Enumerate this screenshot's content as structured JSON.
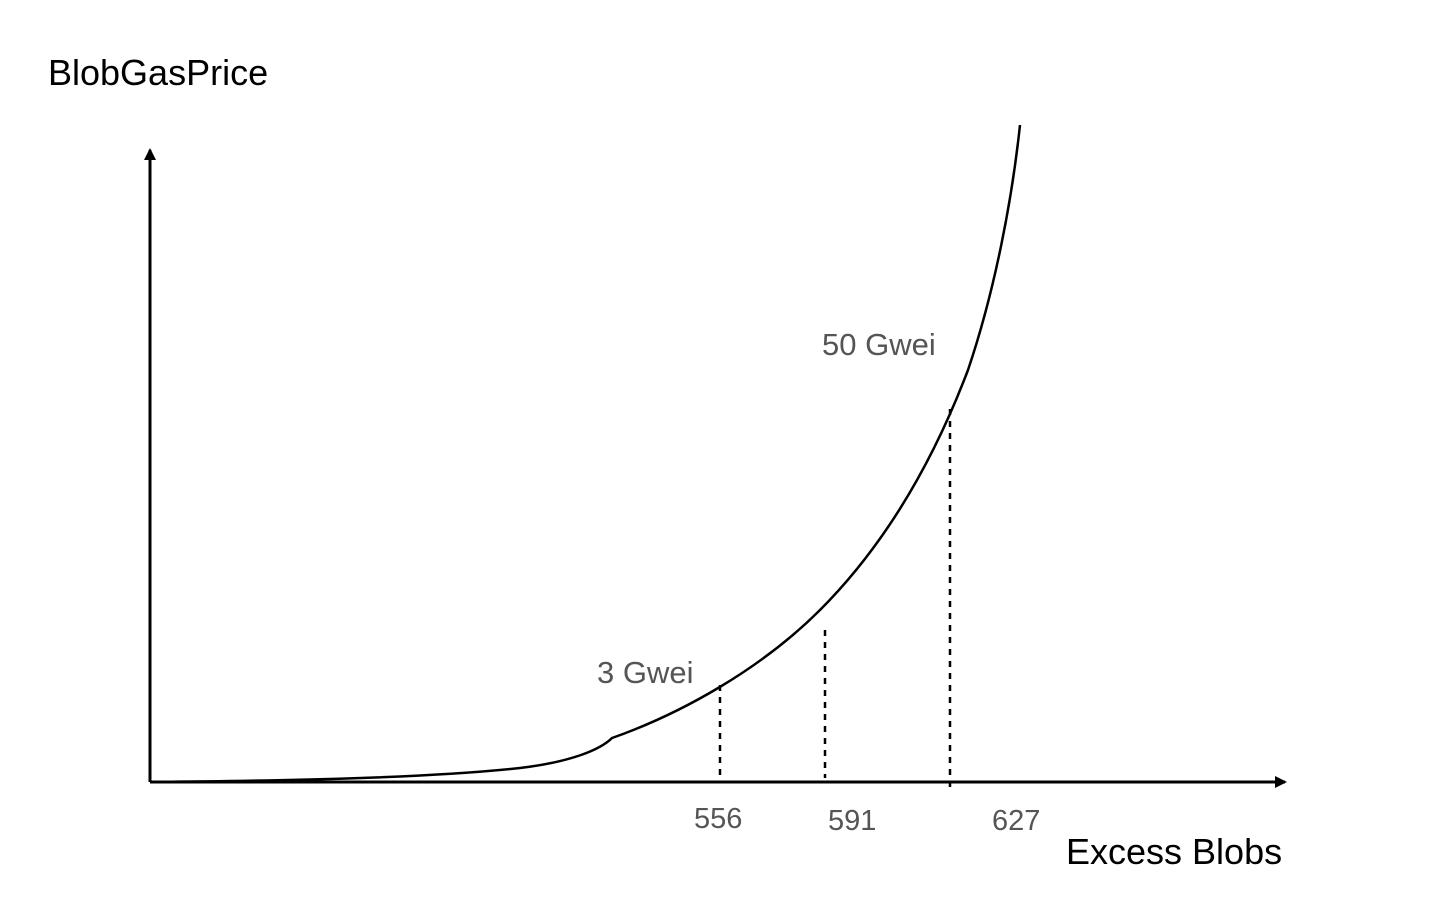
{
  "chart_data": {
    "type": "line",
    "title": "",
    "ylabel": "BlobGasPrice",
    "xlabel": "Excess Blobs",
    "grid": false,
    "legend": "none",
    "colors": {
      "curve": "#000000",
      "axis": "#000000",
      "tick_text": "#555555",
      "axis_text": "#000000"
    },
    "series": [
      {
        "style": "exponential-curve",
        "x": [
          0,
          100,
          200,
          300,
          400,
          460,
          500,
          556,
          591,
          610,
          627,
          640,
          660
        ],
        "y": [
          0.0,
          0.05,
          0.2,
          0.5,
          1.2,
          2.0,
          2.4,
          3.0,
          7.0,
          20.0,
          50.0,
          85.0,
          160.0
        ]
      }
    ],
    "reference_lines": [
      {
        "x": 556,
        "label": "556",
        "style": "dashed"
      },
      {
        "x": 591,
        "label": "591",
        "style": "dashed"
      },
      {
        "x": 627,
        "label": "627",
        "style": "dashed"
      }
    ],
    "annotations": [
      {
        "text": "3 Gwei",
        "x": 556,
        "y": 3
      },
      {
        "text": "50 Gwei",
        "x": 627,
        "y": 50
      }
    ]
  }
}
